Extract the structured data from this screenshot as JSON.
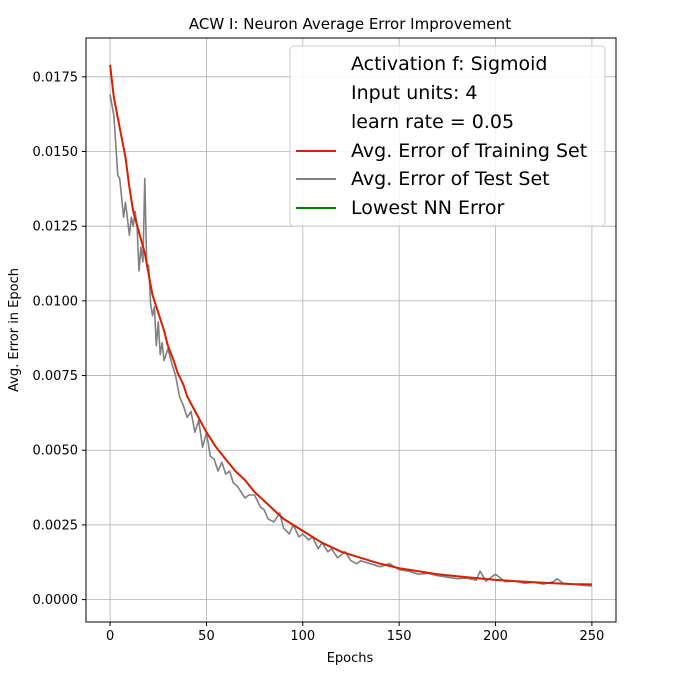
{
  "chart_data": {
    "type": "line",
    "title": "ACW I: Neuron Average Error Improvement",
    "xlabel": "Epochs",
    "ylabel": "Avg. Error in Epoch",
    "xlim": [
      -12.5,
      262.5
    ],
    "ylim": [
      -0.00075,
      0.0188
    ],
    "x_ticks": [
      0,
      50,
      100,
      150,
      200,
      250
    ],
    "x_tick_labels": [
      "0",
      "50",
      "100",
      "150",
      "200",
      "250"
    ],
    "y_ticks": [
      0.0,
      0.0025,
      0.005,
      0.0075,
      0.01,
      0.0125,
      0.015,
      0.0175
    ],
    "y_tick_labels": [
      "0.0000",
      "0.0025",
      "0.0050",
      "0.0075",
      "0.0100",
      "0.0125",
      "0.0150",
      "0.0175"
    ],
    "grid": true,
    "legend": {
      "placement": "top-right",
      "info_lines": [
        "Activation f: Sigmoid",
        "Input units: 4",
        "learn rate = 0.05"
      ]
    },
    "series": [
      {
        "name": "Avg. Error of Training Set",
        "color": "#d62000",
        "x": [
          0,
          2,
          5,
          8,
          10,
          12,
          15,
          18,
          20,
          22,
          25,
          28,
          30,
          33,
          35,
          38,
          40,
          45,
          50,
          55,
          60,
          65,
          70,
          75,
          80,
          85,
          90,
          95,
          100,
          110,
          120,
          130,
          140,
          150,
          160,
          170,
          180,
          190,
          200,
          210,
          220,
          230,
          240,
          250
        ],
        "values": [
          0.0179,
          0.0168,
          0.0158,
          0.0148,
          0.0138,
          0.013,
          0.0123,
          0.0116,
          0.0109,
          0.0102,
          0.0096,
          0.009,
          0.0085,
          0.008,
          0.0076,
          0.0072,
          0.0068,
          0.0062,
          0.0056,
          0.0051,
          0.0047,
          0.0043,
          0.004,
          0.0036,
          0.0033,
          0.003,
          0.0027,
          0.0025,
          0.0023,
          0.0019,
          0.0016,
          0.0014,
          0.0012,
          0.00105,
          0.00095,
          0.00085,
          0.00078,
          0.00072,
          0.00066,
          0.00062,
          0.00058,
          0.00055,
          0.00052,
          0.00051
        ]
      },
      {
        "name": "Avg. Error of Test Set",
        "color": "#808080",
        "x": [
          0,
          2,
          4,
          5,
          7,
          8,
          10,
          11,
          12,
          13,
          14,
          15,
          16,
          17,
          18,
          19,
          20,
          21,
          22,
          23,
          24,
          25,
          26,
          27,
          28,
          30,
          32,
          34,
          36,
          38,
          40,
          42,
          44,
          46,
          48,
          50,
          52,
          54,
          56,
          58,
          60,
          62,
          64,
          66,
          68,
          70,
          72,
          75,
          78,
          80,
          82,
          85,
          88,
          90,
          93,
          95,
          98,
          100,
          103,
          105,
          108,
          110,
          113,
          115,
          118,
          120,
          122,
          125,
          128,
          130,
          135,
          140,
          145,
          150,
          155,
          160,
          165,
          170,
          175,
          180,
          185,
          190,
          192,
          195,
          200,
          205,
          210,
          215,
          220,
          225,
          230,
          232,
          235,
          240,
          245,
          250
        ],
        "values": [
          0.0169,
          0.0162,
          0.0142,
          0.0141,
          0.0128,
          0.0133,
          0.0122,
          0.0128,
          0.0125,
          0.013,
          0.0125,
          0.011,
          0.0118,
          0.0113,
          0.0141,
          0.0112,
          0.0112,
          0.0099,
          0.0095,
          0.0098,
          0.0085,
          0.0093,
          0.0082,
          0.0086,
          0.008,
          0.0084,
          0.0079,
          0.0075,
          0.0068,
          0.0065,
          0.0061,
          0.0063,
          0.0056,
          0.006,
          0.0051,
          0.0056,
          0.0048,
          0.0047,
          0.0043,
          0.0046,
          0.0042,
          0.0043,
          0.0039,
          0.0038,
          0.0036,
          0.0034,
          0.0035,
          0.0035,
          0.0031,
          0.003,
          0.0027,
          0.0026,
          0.0029,
          0.0024,
          0.0022,
          0.0025,
          0.0021,
          0.0022,
          0.002,
          0.0021,
          0.0017,
          0.0019,
          0.0016,
          0.0017,
          0.0014,
          0.0015,
          0.0016,
          0.0013,
          0.0012,
          0.0013,
          0.0012,
          0.0011,
          0.0012,
          0.001,
          0.00095,
          0.00085,
          0.00088,
          0.0008,
          0.00075,
          0.0007,
          0.00072,
          0.00065,
          0.00095,
          0.00062,
          0.00085,
          0.0006,
          0.00062,
          0.00055,
          0.00058,
          0.00052,
          0.0006,
          0.0007,
          0.00055,
          0.00052,
          0.00048,
          0.00046
        ]
      },
      {
        "name": "Lowest NN Error",
        "color": "#008000",
        "x": [],
        "values": []
      }
    ]
  }
}
